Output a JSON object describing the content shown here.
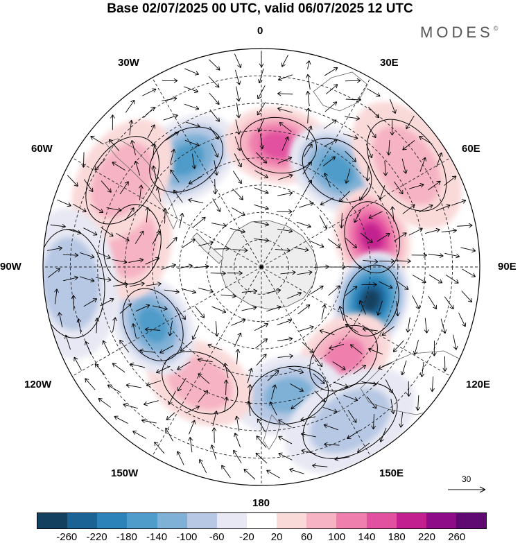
{
  "title": "Base 02/07/2025 00 UTC, valid 06/07/2025 12 UTC",
  "brand": "MODES",
  "brand_mark": "©",
  "longitude_labels": {
    "lon_0": "0",
    "lon_30e": "30E",
    "lon_60e": "60E",
    "lon_90e": "90E",
    "lon_120e": "120E",
    "lon_150e": "150E",
    "lon_180": "180",
    "lon_150w": "150W",
    "lon_120w": "120W",
    "lon_90w": "90W",
    "lon_60w": "60W",
    "lon_30w": "30W"
  },
  "reference_vector": {
    "value": "30"
  },
  "colorbar": {
    "colors": [
      "#12405e",
      "#1b6394",
      "#2b83ba",
      "#4f9bc9",
      "#7fb0d6",
      "#b7c8e4",
      "#e7e8f3",
      "#ffffff",
      "#fad9d9",
      "#f6b3c3",
      "#ef80ae",
      "#e2519f",
      "#c2208f",
      "#8e0c87",
      "#5e0a72"
    ],
    "tick_labels": [
      "-260",
      "-220",
      "-180",
      "-140",
      "-100",
      "-60",
      "-20",
      "20",
      "60",
      "100",
      "140",
      "180",
      "220",
      "260"
    ]
  },
  "anomaly_centres": [
    {
      "lon": -35,
      "lat": -42,
      "value": -140
    },
    {
      "lon": 8,
      "lat": -45,
      "value": 160
    },
    {
      "lon": 38,
      "lat": -45,
      "value": -150
    },
    {
      "lon": 75,
      "lat": -48,
      "value": 200
    },
    {
      "lon": 107,
      "lat": -48,
      "value": -270
    },
    {
      "lon": 138,
      "lat": -45,
      "value": 130
    },
    {
      "lon": 168,
      "lat": -42,
      "value": -130
    },
    {
      "lon": -152,
      "lat": -42,
      "value": 90
    },
    {
      "lon": -118,
      "lat": -45,
      "value": -150
    },
    {
      "lon": -80,
      "lat": -42,
      "value": 90
    },
    {
      "lon": -58,
      "lat": -30,
      "value": 80
    },
    {
      "lon": 150,
      "lat": -25,
      "value": -90
    },
    {
      "lon": -95,
      "lat": -20,
      "value": -60
    },
    {
      "lon": 55,
      "lat": -25,
      "value": 60
    }
  ]
}
